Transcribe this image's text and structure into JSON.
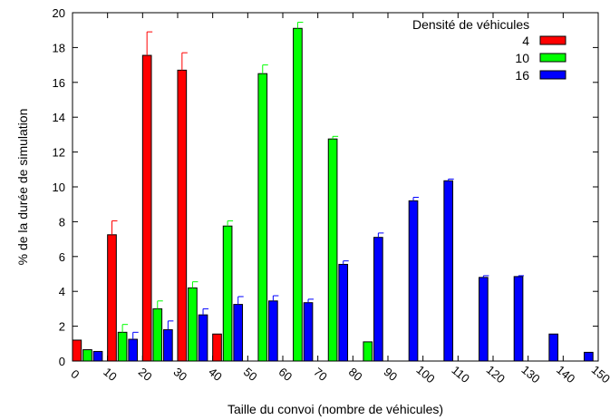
{
  "chart_data": {
    "type": "bar",
    "xlabel": "Taille du convoi (nombre de véhicules)",
    "ylabel": "% de la durée de simulation",
    "ylim": [
      0,
      20
    ],
    "yticks": [
      "0",
      "2",
      "4",
      "6",
      "8",
      "10",
      "12",
      "14",
      "16",
      "18",
      "20"
    ],
    "xticks": [
      "0",
      "10",
      "20",
      "30",
      "40",
      "50",
      "60",
      "70",
      "80",
      "90",
      "100",
      "110",
      "120",
      "130",
      "140",
      "150"
    ],
    "categories": [
      "0",
      "10",
      "20",
      "30",
      "40",
      "50",
      "60",
      "70",
      "80",
      "90",
      "100",
      "110",
      "120",
      "130",
      "140"
    ],
    "legend": {
      "title": "Densité de véhicules",
      "position": "top-right"
    },
    "grid": false,
    "error_bars": true,
    "series": [
      {
        "name": "4",
        "color": "#ff0000",
        "values": [
          1.2,
          7.25,
          17.55,
          16.7,
          1.55,
          0,
          0,
          0,
          0,
          0,
          0,
          0,
          0,
          0,
          0
        ],
        "errors": [
          0,
          0.8,
          1.35,
          1.0,
          0,
          0,
          0,
          0,
          0,
          0,
          0,
          0,
          0,
          0,
          0
        ]
      },
      {
        "name": "10",
        "color": "#00ff00",
        "values": [
          0.65,
          1.65,
          3.0,
          4.2,
          7.75,
          16.5,
          19.1,
          12.75,
          1.1,
          0,
          0,
          0,
          0,
          0,
          0
        ],
        "errors": [
          0,
          0.45,
          0.45,
          0.35,
          0.3,
          0.5,
          0.35,
          0.15,
          0,
          0,
          0,
          0,
          0,
          0,
          0
        ]
      },
      {
        "name": "16",
        "color": "#0000ff",
        "values": [
          0.55,
          1.25,
          1.8,
          2.65,
          3.25,
          3.45,
          3.35,
          5.55,
          7.1,
          9.2,
          10.35,
          4.8,
          4.85,
          1.55,
          0.5
        ],
        "errors": [
          0,
          0.4,
          0.5,
          0.35,
          0.45,
          0.3,
          0.2,
          0.2,
          0.25,
          0.2,
          0.1,
          0.1,
          0.05,
          0,
          0
        ]
      }
    ]
  }
}
